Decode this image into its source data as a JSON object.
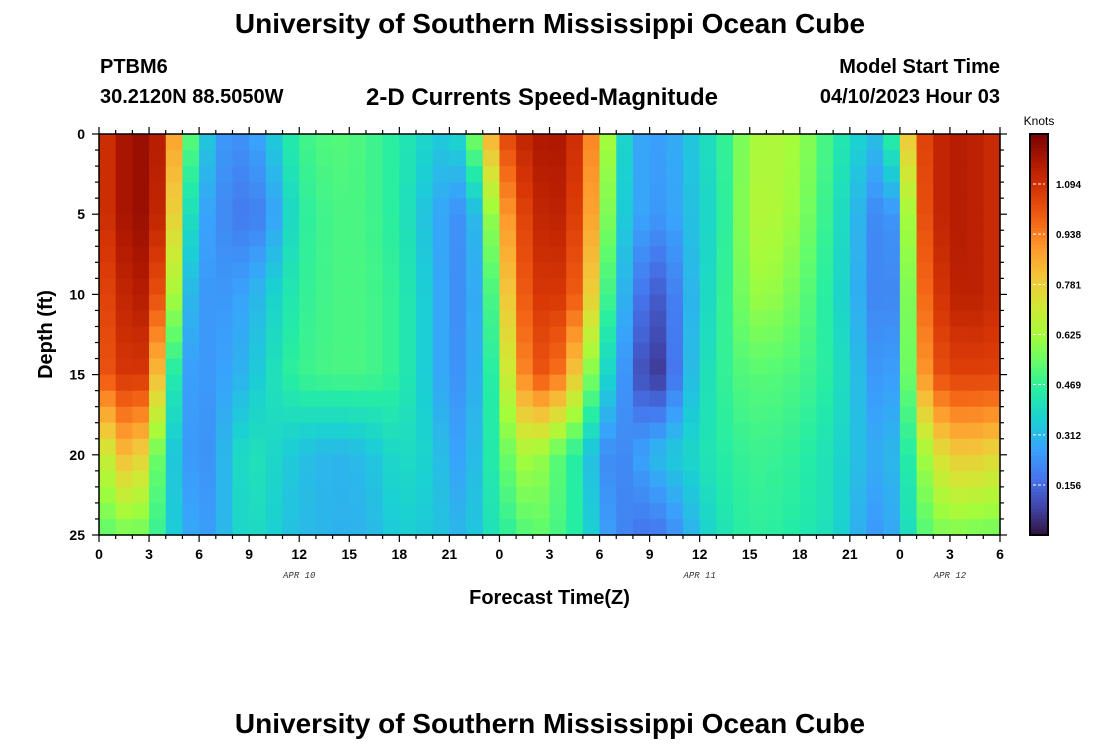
{
  "header": {
    "title": "University of Southern Mississippi Ocean Cube",
    "station": "PTBM6",
    "coords": "30.2120N  88.5050W",
    "subtitle": "2-D Currents Speed-Magnitude",
    "model_label": "Model Start Time",
    "model_time": "04/10/2023 Hour 03"
  },
  "footer": {
    "title": "University of Southern Mississippi Ocean Cube"
  },
  "chart_data": {
    "type": "heatmap",
    "xlabel": "Forecast Time(Z)",
    "ylabel": "Depth (ft)",
    "x_tick_labels": [
      "0",
      "3",
      "6",
      "9",
      "12",
      "15",
      "18",
      "21",
      "0",
      "3",
      "6",
      "9",
      "12",
      "15",
      "18",
      "21",
      "0",
      "3",
      "6"
    ],
    "x_hours": [
      0,
      3,
      6,
      9,
      12,
      15,
      18,
      21,
      24,
      27,
      30,
      33,
      36,
      39,
      42,
      45,
      48,
      51,
      54
    ],
    "xlim": [
      0,
      54
    ],
    "date_labels": [
      {
        "text": "APR 10",
        "hour": 12
      },
      {
        "text": "APR 11",
        "hour": 36
      },
      {
        "text": "APR 12",
        "hour": 51
      }
    ],
    "y_ticks": [
      0,
      5,
      10,
      15,
      20,
      25
    ],
    "ylim": [
      0,
      25
    ],
    "y_reversed": true,
    "colorbar": {
      "label": "Knots",
      "range": [
        0,
        1.25
      ],
      "ticks": [
        "0.156",
        "0.312",
        "0.469",
        "0.625",
        "0.781",
        "0.938",
        "1.094"
      ],
      "tick_values": [
        0.156,
        0.312,
        0.469,
        0.625,
        0.781,
        0.938,
        1.094
      ],
      "colors": [
        "#30123b",
        "#4145ab",
        "#4675ed",
        "#39a2fc",
        "#1bcfd4",
        "#24eca6",
        "#61fc6c",
        "#a4fc3b",
        "#d1e834",
        "#f3c63a",
        "#fe9b2d",
        "#f36315",
        "#d93806",
        "#b11901",
        "#7a0403"
      ]
    },
    "speed_field_knots": {
      "x_hours": [
        0,
        1,
        2,
        3,
        4,
        5,
        6,
        7,
        8,
        9,
        10,
        11,
        12,
        14,
        16,
        18,
        20,
        21,
        22,
        23,
        24,
        25,
        26,
        27,
        28,
        29,
        30,
        31,
        32,
        33,
        34,
        35,
        36,
        37,
        38,
        39,
        40,
        42,
        44,
        46,
        47,
        48,
        49,
        50,
        51,
        52,
        54
      ],
      "depths_ft": [
        0,
        5,
        10,
        15,
        20,
        25
      ],
      "rows": [
        [
          1.05,
          1.15,
          1.2,
          1.2,
          1.1,
          0.65,
          0.4,
          0.28,
          0.22,
          0.25,
          0.3,
          0.4,
          0.48,
          0.52,
          0.5,
          0.44,
          0.36,
          0.34,
          0.42,
          0.72,
          0.98,
          1.1,
          1.15,
          1.18,
          1.15,
          1.05,
          0.8,
          0.45,
          0.3,
          0.25,
          0.27,
          0.3,
          0.38,
          0.42,
          0.52,
          0.62,
          0.65,
          0.62,
          0.46,
          0.34,
          0.32,
          0.6,
          1.0,
          1.1,
          1.15,
          1.15,
          1.1
        ],
        [
          1.05,
          1.15,
          1.2,
          1.2,
          1.05,
          0.5,
          0.3,
          0.24,
          0.2,
          0.18,
          0.22,
          0.32,
          0.45,
          0.5,
          0.5,
          0.44,
          0.3,
          0.25,
          0.22,
          0.4,
          0.8,
          1.0,
          1.1,
          1.15,
          1.12,
          1.0,
          0.75,
          0.4,
          0.3,
          0.25,
          0.25,
          0.3,
          0.36,
          0.4,
          0.52,
          0.64,
          0.66,
          0.6,
          0.44,
          0.26,
          0.18,
          0.3,
          0.95,
          1.1,
          1.15,
          1.15,
          1.1
        ],
        [
          1.0,
          1.1,
          1.15,
          1.15,
          0.9,
          0.36,
          0.26,
          0.24,
          0.26,
          0.28,
          0.34,
          0.4,
          0.46,
          0.5,
          0.5,
          0.46,
          0.32,
          0.24,
          0.22,
          0.35,
          0.65,
          0.95,
          1.05,
          1.1,
          1.05,
          0.95,
          0.62,
          0.36,
          0.24,
          0.12,
          0.15,
          0.25,
          0.36,
          0.42,
          0.52,
          0.6,
          0.62,
          0.55,
          0.42,
          0.25,
          0.18,
          0.25,
          0.9,
          1.05,
          1.12,
          1.15,
          1.1
        ],
        [
          0.98,
          1.05,
          1.1,
          1.05,
          0.6,
          0.28,
          0.24,
          0.26,
          0.28,
          0.32,
          0.38,
          0.44,
          0.48,
          0.5,
          0.5,
          0.46,
          0.32,
          0.24,
          0.24,
          0.35,
          0.55,
          0.85,
          1.0,
          1.02,
          0.9,
          0.7,
          0.45,
          0.3,
          0.18,
          0.04,
          0.1,
          0.26,
          0.38,
          0.44,
          0.5,
          0.52,
          0.52,
          0.5,
          0.44,
          0.28,
          0.22,
          0.3,
          0.8,
          1.0,
          1.05,
          1.05,
          1.05
        ],
        [
          0.6,
          0.8,
          0.85,
          0.7,
          0.4,
          0.28,
          0.22,
          0.26,
          0.36,
          0.42,
          0.4,
          0.36,
          0.33,
          0.3,
          0.32,
          0.4,
          0.36,
          0.28,
          0.26,
          0.38,
          0.5,
          0.6,
          0.66,
          0.55,
          0.5,
          0.4,
          0.25,
          0.2,
          0.24,
          0.3,
          0.34,
          0.36,
          0.4,
          0.44,
          0.46,
          0.48,
          0.48,
          0.46,
          0.4,
          0.3,
          0.28,
          0.34,
          0.55,
          0.7,
          0.78,
          0.8,
          0.75
        ],
        [
          0.5,
          0.56,
          0.55,
          0.55,
          0.4,
          0.3,
          0.26,
          0.26,
          0.36,
          0.4,
          0.38,
          0.34,
          0.32,
          0.3,
          0.3,
          0.36,
          0.34,
          0.32,
          0.3,
          0.38,
          0.44,
          0.48,
          0.54,
          0.52,
          0.48,
          0.42,
          0.3,
          0.22,
          0.2,
          0.16,
          0.2,
          0.26,
          0.34,
          0.4,
          0.44,
          0.46,
          0.46,
          0.44,
          0.4,
          0.26,
          0.24,
          0.32,
          0.48,
          0.55,
          0.58,
          0.56,
          0.55
        ]
      ]
    }
  }
}
